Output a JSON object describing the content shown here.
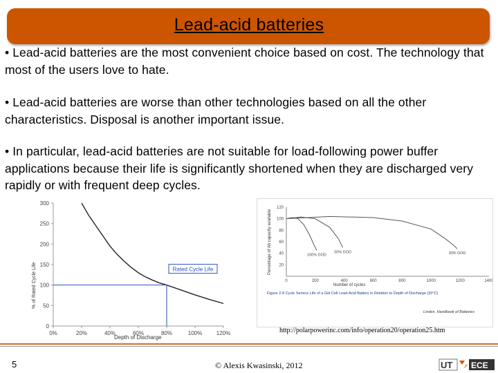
{
  "slide": {
    "title": "Lead-acid batteries",
    "bullets": [
      "• Lead-acid batteries are the most convenient choice based on cost. The technology that most of the users love to hate.",
      "• Lead-acid batteries are worse than other technologies based on all the other characteristics. Disposal is another important issue.",
      "• In particular, lead-acid batteries are not suitable for load-following power buffer applications because their life is significantly shortened when they are discharged very rapidly or with frequent deep cycles."
    ],
    "source_url": "http://polarpowerinc.com/info/operation20/operation25.htm",
    "page_number": "5",
    "copyright": "© Alexis Kwasinski, 2012",
    "logo_text": {
      "ut": "UT",
      "ece": "ECE"
    },
    "colors": {
      "title_bar": "#cc5500",
      "accent_line": "#d96a1e"
    }
  },
  "chart_data": [
    {
      "type": "line",
      "xlabel": "Depth of Discharge",
      "ylabel": "% of Rated Cycle Life",
      "x_tick_labels": [
        "0%",
        "20%",
        "40%",
        "60%",
        "80%",
        "100%",
        "120%"
      ],
      "y_tick_labels": [
        "0",
        "50",
        "100",
        "150",
        "200",
        "250",
        "300"
      ],
      "xlim": [
        0,
        120
      ],
      "ylim": [
        0,
        300
      ],
      "annotations": [
        "Rated Cycle Life"
      ],
      "reference_point": {
        "x": 80,
        "y": 100
      },
      "series": [
        {
          "x": [
            20,
            25,
            30,
            35,
            40,
            45,
            50,
            55,
            60,
            65,
            70,
            75,
            80,
            90,
            100,
            110,
            120
          ],
          "y": [
            300,
            270,
            245,
            220,
            195,
            175,
            158,
            143,
            130,
            120,
            112,
            105,
            100,
            88,
            76,
            65,
            55
          ]
        }
      ]
    },
    {
      "type": "line",
      "xlabel": "Number of cycles",
      "ylabel": "Percentage of Ah capacity available",
      "x_tick_labels": [
        "0",
        "200",
        "400",
        "600",
        "800",
        "1000",
        "1200",
        "1400"
      ],
      "y_tick_labels": [
        "20",
        "40",
        "60",
        "80",
        "100",
        "120"
      ],
      "xlim": [
        0,
        1400
      ],
      "ylim": [
        0,
        120
      ],
      "series": [
        {
          "name": "100% DOD",
          "x": [
            0,
            40,
            80,
            120,
            160,
            190,
            210
          ],
          "y": [
            100,
            102,
            100,
            90,
            72,
            55,
            45
          ]
        },
        {
          "name": "50% DOD",
          "x": [
            0,
            100,
            200,
            300,
            360,
            390
          ],
          "y": [
            100,
            103,
            100,
            85,
            65,
            50
          ]
        },
        {
          "name": "30% DOD",
          "x": [
            0,
            300,
            600,
            800,
            1000,
            1100,
            1150,
            1180
          ],
          "y": [
            100,
            104,
            102,
            96,
            82,
            65,
            55,
            48
          ]
        }
      ],
      "caption": "Figure 2-8 Cycle Service Life of a Gel Cell Lead-Acid Battery in Relation to Depth of Discharge (20°C)",
      "source": "Linden, Handbook of Batteries"
    }
  ]
}
